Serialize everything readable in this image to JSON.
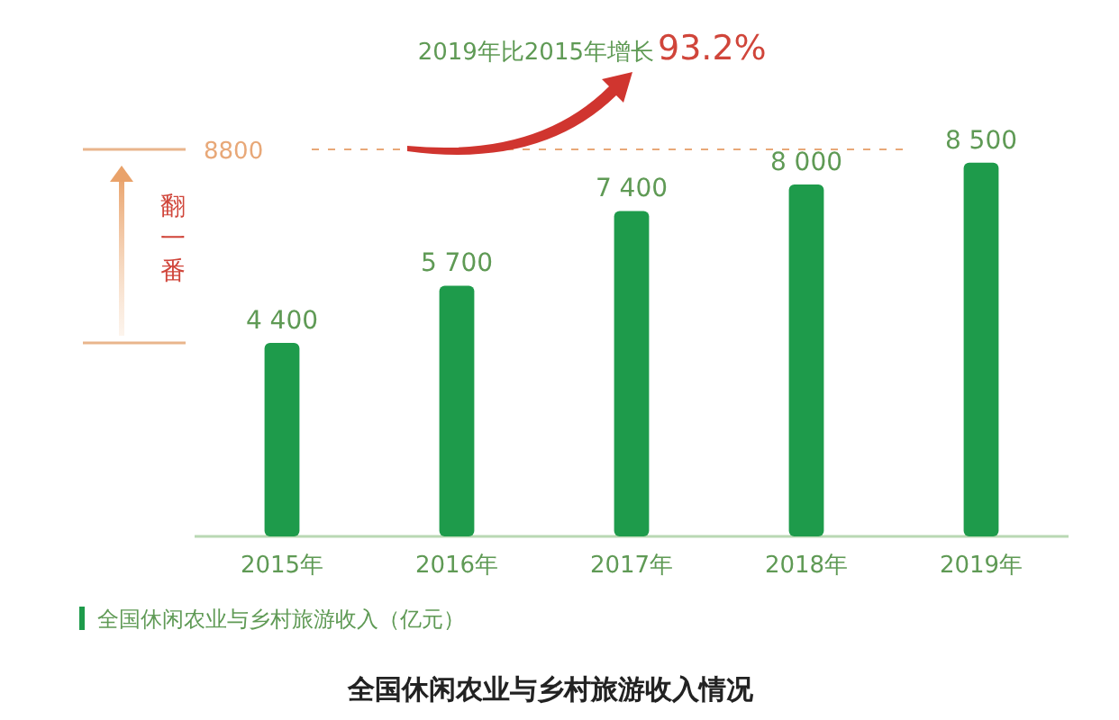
{
  "chart_data": {
    "type": "bar",
    "title": "全国休闲农业与乡村旅游收入情况",
    "categories": [
      "2015年",
      "2016年",
      "2017年",
      "2018年",
      "2019年"
    ],
    "series": [
      {
        "name": "全国休闲农业与乡村旅游收入（亿元）",
        "color": "#1e9b4b",
        "values": [
          4400,
          5700,
          7400,
          8000,
          8500
        ],
        "value_labels": [
          "4 400",
          "5 700",
          "7 400",
          "8 000",
          "8 500"
        ]
      }
    ],
    "legend": "bottom left",
    "ref_lines": [
      {
        "axis": "y",
        "value": 8800,
        "label": "8800",
        "color": "#e8a878",
        "line_style": "dashed"
      }
    ],
    "annotations": [
      "2019年比2015年增长",
      "93.2%",
      "翻一番"
    ]
  }
}
